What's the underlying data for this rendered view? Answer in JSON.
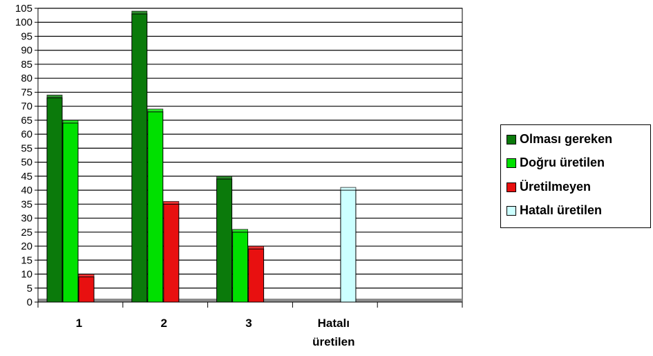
{
  "chart_data": {
    "type": "bar",
    "categories": [
      "1",
      "2",
      "3",
      "Hatalı\nüretilen"
    ],
    "ylim": [
      0,
      105
    ],
    "yticks": [
      0,
      5,
      10,
      15,
      20,
      25,
      30,
      35,
      40,
      45,
      50,
      55,
      60,
      65,
      70,
      75,
      80,
      85,
      90,
      95,
      100,
      105
    ],
    "grid": true,
    "legend_position": "right",
    "series": [
      {
        "name": "Olması gereken",
        "color": "#0b7a0b",
        "values": [
          73,
          103,
          44,
          null
        ]
      },
      {
        "name": "Doğru üretilen",
        "color": "#00e000",
        "values": [
          64,
          68,
          25,
          null
        ]
      },
      {
        "name": "Üretilmeyen",
        "color": "#e81010",
        "values": [
          9,
          35,
          19,
          null
        ]
      },
      {
        "name": "Hatalı üretilen",
        "color": "#ccffff",
        "values": [
          null,
          null,
          null,
          40
        ]
      }
    ]
  }
}
